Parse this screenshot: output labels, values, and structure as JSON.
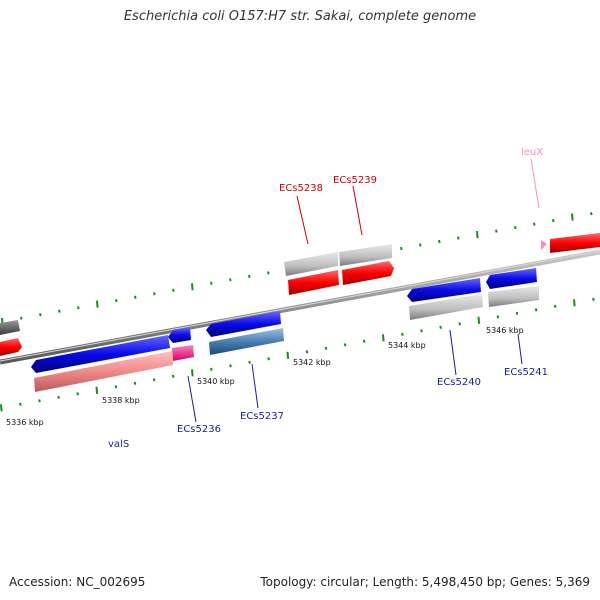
{
  "title": "Escherichia coli O157:H7 str. Sakai, complete genome",
  "footer": {
    "accession": "Accession: NC_002695",
    "info": "Topology: circular; Length: 5,498,450 bp; Genes: 5,369"
  },
  "colors": {
    "background": "#ffffff",
    "backbone": "#808080",
    "tick": "#1a8a1a",
    "cds_forward": "#ff0000",
    "cds_reverse": "#1010e0",
    "grey_track": "#bdbdbd",
    "pink_track": "#f08a8a",
    "magenta": "#ff1493",
    "steel_blue": "#4a7fb0",
    "label_red": "#cc0000",
    "label_blue": "#1a1aa8",
    "label_pink": "#ff88c8"
  },
  "scale_labels": [
    "5336 kbp",
    "5338 kbp",
    "5340 kbp",
    "5342 kbp",
    "5344 kbp",
    "5346 kbp"
  ],
  "gene_labels": [
    {
      "text": "ECs5238",
      "color": "label_red"
    },
    {
      "text": "ECs5239",
      "color": "label_red"
    },
    {
      "text": "leuX",
      "color": "label_pink"
    },
    {
      "text": "ECs5240",
      "color": "label_blue"
    },
    {
      "text": "ECs5241",
      "color": "label_blue"
    },
    {
      "text": "ECs5237",
      "color": "label_blue"
    },
    {
      "text": "ECs5236",
      "color": "label_blue"
    },
    {
      "text": "valS",
      "color": "label_blue"
    }
  ]
}
